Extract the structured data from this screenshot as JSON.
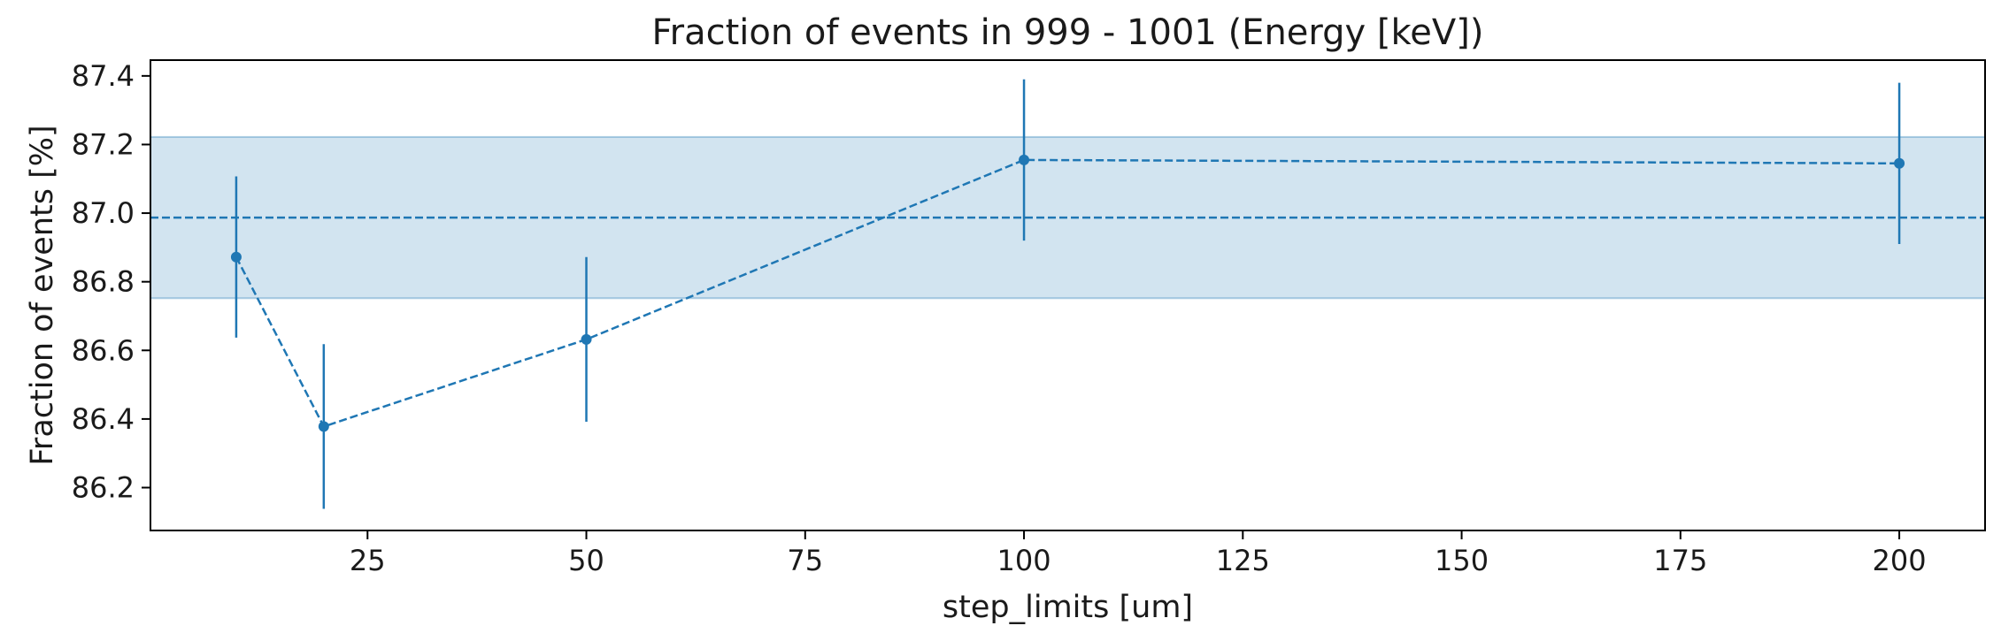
{
  "chart_data": {
    "type": "line",
    "title": "Fraction of events in 999 - 1001 (Energy [keV])",
    "xlabel": "step_limits [um]",
    "ylabel": "Fraction of events [%]",
    "xlim": [
      0.2,
      209.8
    ],
    "ylim": [
      86.075,
      87.446
    ],
    "xticks": [
      25,
      50,
      75,
      100,
      125,
      150,
      175,
      200
    ],
    "xtick_labels": [
      "25",
      "50",
      "75",
      "100",
      "125",
      "150",
      "175",
      "200"
    ],
    "yticks": [
      86.2,
      86.4,
      86.6,
      86.8,
      87.0,
      87.2,
      87.4
    ],
    "ytick_labels": [
      "86.2",
      "86.4",
      "86.6",
      "86.8",
      "87.0",
      "87.2",
      "87.4"
    ],
    "grid": false,
    "series": [
      {
        "x": [
          10,
          20,
          50,
          100,
          200
        ],
        "y": [
          86.872,
          86.378,
          86.632,
          87.155,
          87.145
        ],
        "yerr": [
          0.235,
          0.24,
          0.24,
          0.235,
          0.235
        ],
        "color": "#1f77b4",
        "linestyle": "dashed",
        "marker": "circle"
      }
    ],
    "reference_line": {
      "y": 86.987,
      "color": "#1f77b4",
      "linestyle": "dashed"
    },
    "band": {
      "ymin": 86.752,
      "ymax": 87.222,
      "color": "#1f77b4",
      "alpha": 0.2
    }
  }
}
